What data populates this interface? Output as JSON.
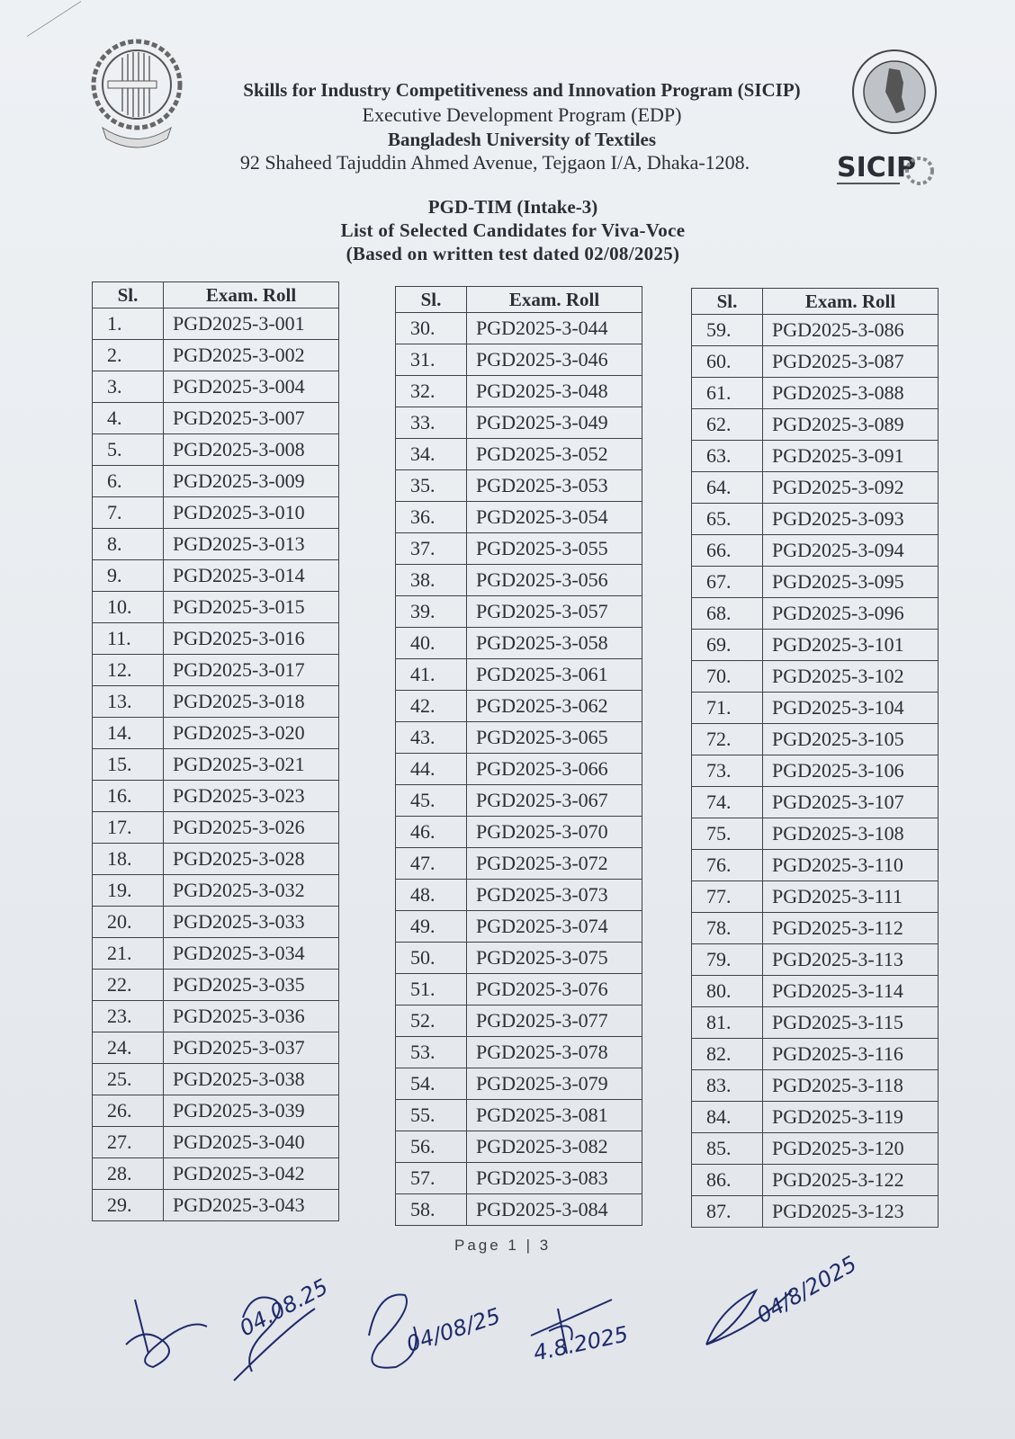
{
  "header": {
    "line1": "Skills for Industry Competitiveness and Innovation Program (SICIP)",
    "line2": "Executive Development Program (EDP)",
    "line3": "Bangladesh University of Textiles",
    "line4": "92 Shaheed Tajuddin Ahmed Avenue, Tejgaon I/A, Dhaka-1208.",
    "logos": [
      "university-logo",
      "government-seal",
      "sicip-logo"
    ]
  },
  "title": {
    "line1": "PGD-TIM (Intake-3)",
    "line2": "List of Selected Candidates for Viva-Voce",
    "line3": "(Based on written test dated 02/08/2025)"
  },
  "table_headers": {
    "sl": "Sl.",
    "roll": "Exam. Roll"
  },
  "tables": [
    {
      "rows": [
        [
          "1.",
          "PGD2025-3-001"
        ],
        [
          "2.",
          "PGD2025-3-002"
        ],
        [
          "3.",
          "PGD2025-3-004"
        ],
        [
          "4.",
          "PGD2025-3-007"
        ],
        [
          "5.",
          "PGD2025-3-008"
        ],
        [
          "6.",
          "PGD2025-3-009"
        ],
        [
          "7.",
          "PGD2025-3-010"
        ],
        [
          "8.",
          "PGD2025-3-013"
        ],
        [
          "9.",
          "PGD2025-3-014"
        ],
        [
          "10.",
          "PGD2025-3-015"
        ],
        [
          "11.",
          "PGD2025-3-016"
        ],
        [
          "12.",
          "PGD2025-3-017"
        ],
        [
          "13.",
          "PGD2025-3-018"
        ],
        [
          "14.",
          "PGD2025-3-020"
        ],
        [
          "15.",
          "PGD2025-3-021"
        ],
        [
          "16.",
          "PGD2025-3-023"
        ],
        [
          "17.",
          "PGD2025-3-026"
        ],
        [
          "18.",
          "PGD2025-3-028"
        ],
        [
          "19.",
          "PGD2025-3-032"
        ],
        [
          "20.",
          "PGD2025-3-033"
        ],
        [
          "21.",
          "PGD2025-3-034"
        ],
        [
          "22.",
          "PGD2025-3-035"
        ],
        [
          "23.",
          "PGD2025-3-036"
        ],
        [
          "24.",
          "PGD2025-3-037"
        ],
        [
          "25.",
          "PGD2025-3-038"
        ],
        [
          "26.",
          "PGD2025-3-039"
        ],
        [
          "27.",
          "PGD2025-3-040"
        ],
        [
          "28.",
          "PGD2025-3-042"
        ],
        [
          "29.",
          "PGD2025-3-043"
        ]
      ]
    },
    {
      "rows": [
        [
          "30.",
          "PGD2025-3-044"
        ],
        [
          "31.",
          "PGD2025-3-046"
        ],
        [
          "32.",
          "PGD2025-3-048"
        ],
        [
          "33.",
          "PGD2025-3-049"
        ],
        [
          "34.",
          "PGD2025-3-052"
        ],
        [
          "35.",
          "PGD2025-3-053"
        ],
        [
          "36.",
          "PGD2025-3-054"
        ],
        [
          "37.",
          "PGD2025-3-055"
        ],
        [
          "38.",
          "PGD2025-3-056"
        ],
        [
          "39.",
          "PGD2025-3-057"
        ],
        [
          "40.",
          "PGD2025-3-058"
        ],
        [
          "41.",
          "PGD2025-3-061"
        ],
        [
          "42.",
          "PGD2025-3-062"
        ],
        [
          "43.",
          "PGD2025-3-065"
        ],
        [
          "44.",
          "PGD2025-3-066"
        ],
        [
          "45.",
          "PGD2025-3-067"
        ],
        [
          "46.",
          "PGD2025-3-070"
        ],
        [
          "47.",
          "PGD2025-3-072"
        ],
        [
          "48.",
          "PGD2025-3-073"
        ],
        [
          "49.",
          "PGD2025-3-074"
        ],
        [
          "50.",
          "PGD2025-3-075"
        ],
        [
          "51.",
          "PGD2025-3-076"
        ],
        [
          "52.",
          "PGD2025-3-077"
        ],
        [
          "53.",
          "PGD2025-3-078"
        ],
        [
          "54.",
          "PGD2025-3-079"
        ],
        [
          "55.",
          "PGD2025-3-081"
        ],
        [
          "56.",
          "PGD2025-3-082"
        ],
        [
          "57.",
          "PGD2025-3-083"
        ],
        [
          "58.",
          "PGD2025-3-084"
        ]
      ]
    },
    {
      "rows": [
        [
          "59.",
          "PGD2025-3-086"
        ],
        [
          "60.",
          "PGD2025-3-087"
        ],
        [
          "61.",
          "PGD2025-3-088"
        ],
        [
          "62.",
          "PGD2025-3-089"
        ],
        [
          "63.",
          "PGD2025-3-091"
        ],
        [
          "64.",
          "PGD2025-3-092"
        ],
        [
          "65.",
          "PGD2025-3-093"
        ],
        [
          "66.",
          "PGD2025-3-094"
        ],
        [
          "67.",
          "PGD2025-3-095"
        ],
        [
          "68.",
          "PGD2025-3-096"
        ],
        [
          "69.",
          "PGD2025-3-101"
        ],
        [
          "70.",
          "PGD2025-3-102"
        ],
        [
          "71.",
          "PGD2025-3-104"
        ],
        [
          "72.",
          "PGD2025-3-105"
        ],
        [
          "73.",
          "PGD2025-3-106"
        ],
        [
          "74.",
          "PGD2025-3-107"
        ],
        [
          "75.",
          "PGD2025-3-108"
        ],
        [
          "76.",
          "PGD2025-3-110"
        ],
        [
          "77.",
          "PGD2025-3-111"
        ],
        [
          "78.",
          "PGD2025-3-112"
        ],
        [
          "79.",
          "PGD2025-3-113"
        ],
        [
          "80.",
          "PGD2025-3-114"
        ],
        [
          "81.",
          "PGD2025-3-115"
        ],
        [
          "82.",
          "PGD2025-3-116"
        ],
        [
          "83.",
          "PGD2025-3-118"
        ],
        [
          "84.",
          "PGD2025-3-119"
        ],
        [
          "85.",
          "PGD2025-3-120"
        ],
        [
          "86.",
          "PGD2025-3-122"
        ],
        [
          "87.",
          "PGD2025-3-123"
        ]
      ]
    }
  ],
  "footer": {
    "page": "Page 1 | 3"
  },
  "signatures": {
    "dates": [
      "04.08.25",
      "04/08/25",
      "4.8.2025",
      "04/8/2025"
    ],
    "ink_color": "#1f2a6b"
  }
}
